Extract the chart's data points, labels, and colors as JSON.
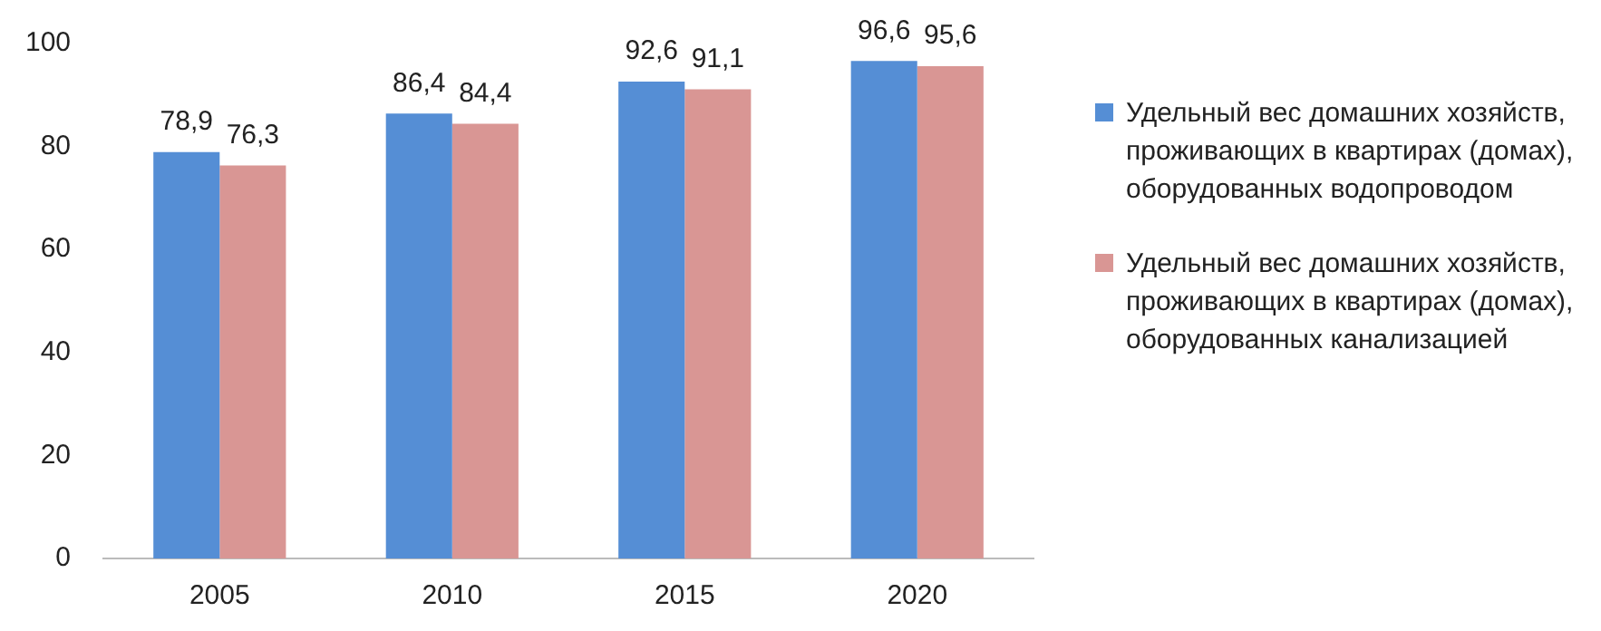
{
  "chart_data": {
    "type": "bar",
    "categories": [
      "2005",
      "2010",
      "2015",
      "2020"
    ],
    "series": [
      {
        "name": "Удельный вес домашних хозяйств, проживающих в квартирах (домах), оборудованных водопроводом",
        "color": "#558ed5",
        "values": [
          78.9,
          86.4,
          92.6,
          96.6
        ],
        "value_labels": [
          "78,9",
          "86,4",
          "92,6",
          "96,6"
        ]
      },
      {
        "name": "Удельный вес домашних хозяйств, проживающих в квартирах (домах), оборудованных канализацией",
        "color": "#d99694",
        "values": [
          76.3,
          84.4,
          91.1,
          95.6
        ],
        "value_labels": [
          "76,3",
          "84,4",
          "91,1",
          "95,6"
        ]
      }
    ],
    "ylim": [
      0,
      100
    ],
    "yticks": [
      0,
      20,
      40,
      60,
      80,
      100
    ],
    "grid": false,
    "legend": "right"
  }
}
